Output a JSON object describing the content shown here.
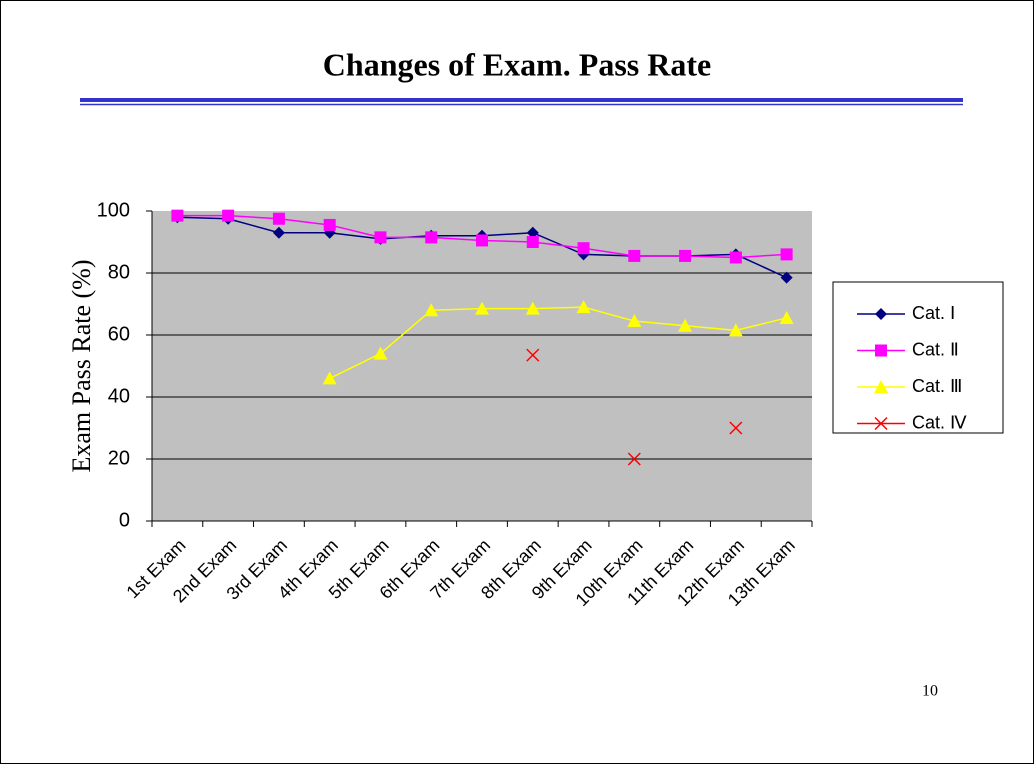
{
  "slide": {
    "title": "Changes of  Exam. Pass Rate",
    "page_number": "10"
  },
  "chart_data": {
    "type": "line",
    "y_label": "Exam Pass Rate (%)",
    "categories": [
      "1st Exam",
      "2nd Exam",
      "3rd Exam",
      "4th Exam",
      "5th Exam",
      "6th Exam",
      "7th Exam",
      "8th Exam",
      "9th Exam",
      "10th Exam",
      "11th Exam",
      "12th Exam",
      "13th Exam"
    ],
    "series": [
      {
        "name": "Cat. Ⅰ",
        "color": "#000080",
        "marker": "diamond",
        "values": [
          98,
          97.5,
          93,
          93,
          91,
          92,
          92,
          93,
          86,
          85.5,
          85.5,
          86,
          78.5
        ]
      },
      {
        "name": "Cat. Ⅱ",
        "color": "#ff00ff",
        "marker": "square",
        "values": [
          98.5,
          98.5,
          97.5,
          95.5,
          91.5,
          91.5,
          90.5,
          90,
          88,
          85.5,
          85.5,
          85,
          86
        ]
      },
      {
        "name": "Cat. Ⅲ",
        "color": "#ffff00",
        "marker": "triangle",
        "values": [
          null,
          null,
          null,
          46,
          54,
          68,
          68.5,
          68.5,
          69,
          64.5,
          63,
          61.5,
          65.5
        ]
      },
      {
        "name": "Cat. Ⅳ",
        "color": "#ff0000",
        "marker": "x",
        "values": [
          null,
          null,
          null,
          null,
          null,
          null,
          null,
          53.5,
          null,
          20,
          null,
          30,
          null
        ]
      }
    ],
    "ylim": [
      0,
      100
    ],
    "yticks": [
      0,
      20,
      40,
      60,
      80,
      100
    ],
    "grid": true,
    "legend": "right"
  }
}
